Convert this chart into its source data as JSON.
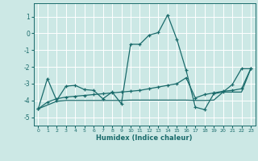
{
  "xlabel": "Humidex (Indice chaleur)",
  "bg_color": "#cce8e5",
  "grid_color": "#ffffff",
  "line_color": "#1a6b6b",
  "xlim": [
    -0.5,
    23.5
  ],
  "ylim": [
    -5.5,
    1.8
  ],
  "yticks": [
    1,
    0,
    -1,
    -2,
    -3,
    -4,
    -5
  ],
  "xticks": [
    0,
    1,
    2,
    3,
    4,
    5,
    6,
    7,
    8,
    9,
    10,
    11,
    12,
    13,
    14,
    15,
    16,
    17,
    18,
    19,
    20,
    21,
    22,
    23
  ],
  "series1_x": [
    0,
    1,
    2,
    3,
    4,
    5,
    6,
    7,
    8,
    9,
    10,
    11,
    12,
    13,
    14,
    15,
    16,
    17,
    18,
    19,
    20,
    21,
    22,
    23
  ],
  "series1_y": [
    -4.5,
    -2.7,
    -4.0,
    -3.15,
    -3.1,
    -3.35,
    -3.4,
    -3.9,
    -3.5,
    -4.2,
    -0.65,
    -0.65,
    -0.1,
    0.05,
    1.1,
    -0.35,
    -2.2,
    -4.4,
    -4.55,
    -3.6,
    -3.5,
    -3.05,
    -2.1,
    -2.1
  ],
  "series2_x": [
    0,
    1,
    2,
    3,
    4,
    5,
    6,
    7,
    8,
    9,
    10,
    11,
    12,
    13,
    14,
    15,
    16,
    17,
    18,
    19,
    20,
    21,
    22,
    23
  ],
  "series2_y": [
    -4.5,
    -4.1,
    -3.9,
    -3.8,
    -3.75,
    -3.7,
    -3.65,
    -3.6,
    -3.55,
    -3.5,
    -3.45,
    -3.4,
    -3.3,
    -3.2,
    -3.1,
    -3.0,
    -2.65,
    -3.85,
    -3.65,
    -3.55,
    -3.45,
    -3.4,
    -3.3,
    -2.1
  ],
  "series3_x": [
    0,
    2,
    3,
    4,
    5,
    6,
    7,
    8,
    9,
    10,
    11,
    12,
    13,
    14,
    15,
    16,
    17,
    18,
    19,
    20,
    21,
    22,
    23
  ],
  "series3_y": [
    -4.5,
    -4.05,
    -4.0,
    -4.0,
    -4.0,
    -4.0,
    -4.0,
    -4.0,
    -4.0,
    -3.98,
    -3.98,
    -3.98,
    -3.98,
    -3.98,
    -3.98,
    -3.98,
    -4.0,
    -4.0,
    -3.98,
    -3.5,
    -3.5,
    -3.5,
    -2.1
  ]
}
